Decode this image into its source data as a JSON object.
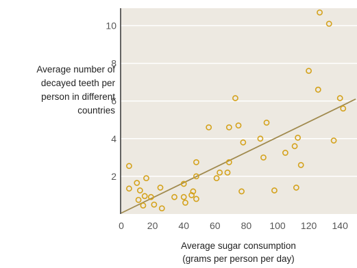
{
  "chart_data": {
    "type": "scatter",
    "title": "",
    "xlabel_lines": [
      "Average sugar consumption",
      "(grams per person per day)"
    ],
    "ylabel_lines": [
      "Average number of",
      "decayed teeth per",
      "person in different",
      "countries"
    ],
    "xlim": [
      0,
      150
    ],
    "ylim": [
      0,
      11
    ],
    "xticks": [
      0,
      20,
      40,
      60,
      80,
      100,
      120,
      140
    ],
    "yticks": [
      2,
      4,
      6,
      8,
      10
    ],
    "grid": "horizontal",
    "legend": "none",
    "colors": {
      "panel": "#ede9e1",
      "grid": "#ffffff",
      "axis": "#333333",
      "points": "#d4a21c",
      "trend": "#a08a4e"
    },
    "points": [
      {
        "x": 5,
        "y": 2.55
      },
      {
        "x": 5,
        "y": 1.35
      },
      {
        "x": 10,
        "y": 1.65
      },
      {
        "x": 11,
        "y": 0.75
      },
      {
        "x": 12,
        "y": 1.25
      },
      {
        "x": 14,
        "y": 0.45
      },
      {
        "x": 15,
        "y": 0.95
      },
      {
        "x": 16,
        "y": 1.9
      },
      {
        "x": 19,
        "y": 0.9
      },
      {
        "x": 21,
        "y": 0.5
      },
      {
        "x": 25,
        "y": 1.4
      },
      {
        "x": 26,
        "y": 0.3
      },
      {
        "x": 34,
        "y": 0.9
      },
      {
        "x": 40,
        "y": 1.6
      },
      {
        "x": 40,
        "y": 0.9
      },
      {
        "x": 41,
        "y": 0.6
      },
      {
        "x": 45,
        "y": 1.0
      },
      {
        "x": 46,
        "y": 1.2
      },
      {
        "x": 48,
        "y": 2.0
      },
      {
        "x": 48,
        "y": 2.75
      },
      {
        "x": 48,
        "y": 0.8
      },
      {
        "x": 56,
        "y": 4.6
      },
      {
        "x": 61,
        "y": 1.9
      },
      {
        "x": 63,
        "y": 2.2
      },
      {
        "x": 68,
        "y": 2.2
      },
      {
        "x": 69,
        "y": 2.75
      },
      {
        "x": 69,
        "y": 4.6
      },
      {
        "x": 73,
        "y": 6.15
      },
      {
        "x": 75,
        "y": 4.7
      },
      {
        "x": 77,
        "y": 1.2
      },
      {
        "x": 78,
        "y": 3.8
      },
      {
        "x": 89,
        "y": 4.0
      },
      {
        "x": 91,
        "y": 3.0
      },
      {
        "x": 93,
        "y": 4.85
      },
      {
        "x": 98,
        "y": 1.25
      },
      {
        "x": 105,
        "y": 3.25
      },
      {
        "x": 111,
        "y": 3.6
      },
      {
        "x": 112,
        "y": 1.4
      },
      {
        "x": 113,
        "y": 4.05
      },
      {
        "x": 115,
        "y": 2.6
      },
      {
        "x": 120,
        "y": 7.6
      },
      {
        "x": 126,
        "y": 6.6
      },
      {
        "x": 127,
        "y": 10.7
      },
      {
        "x": 133,
        "y": 10.1
      },
      {
        "x": 136,
        "y": 3.9
      },
      {
        "x": 140,
        "y": 6.15
      },
      {
        "x": 142,
        "y": 5.6
      }
    ],
    "trendline": {
      "x": [
        0,
        150
      ],
      "y": [
        0.05,
        6.1
      ]
    }
  }
}
